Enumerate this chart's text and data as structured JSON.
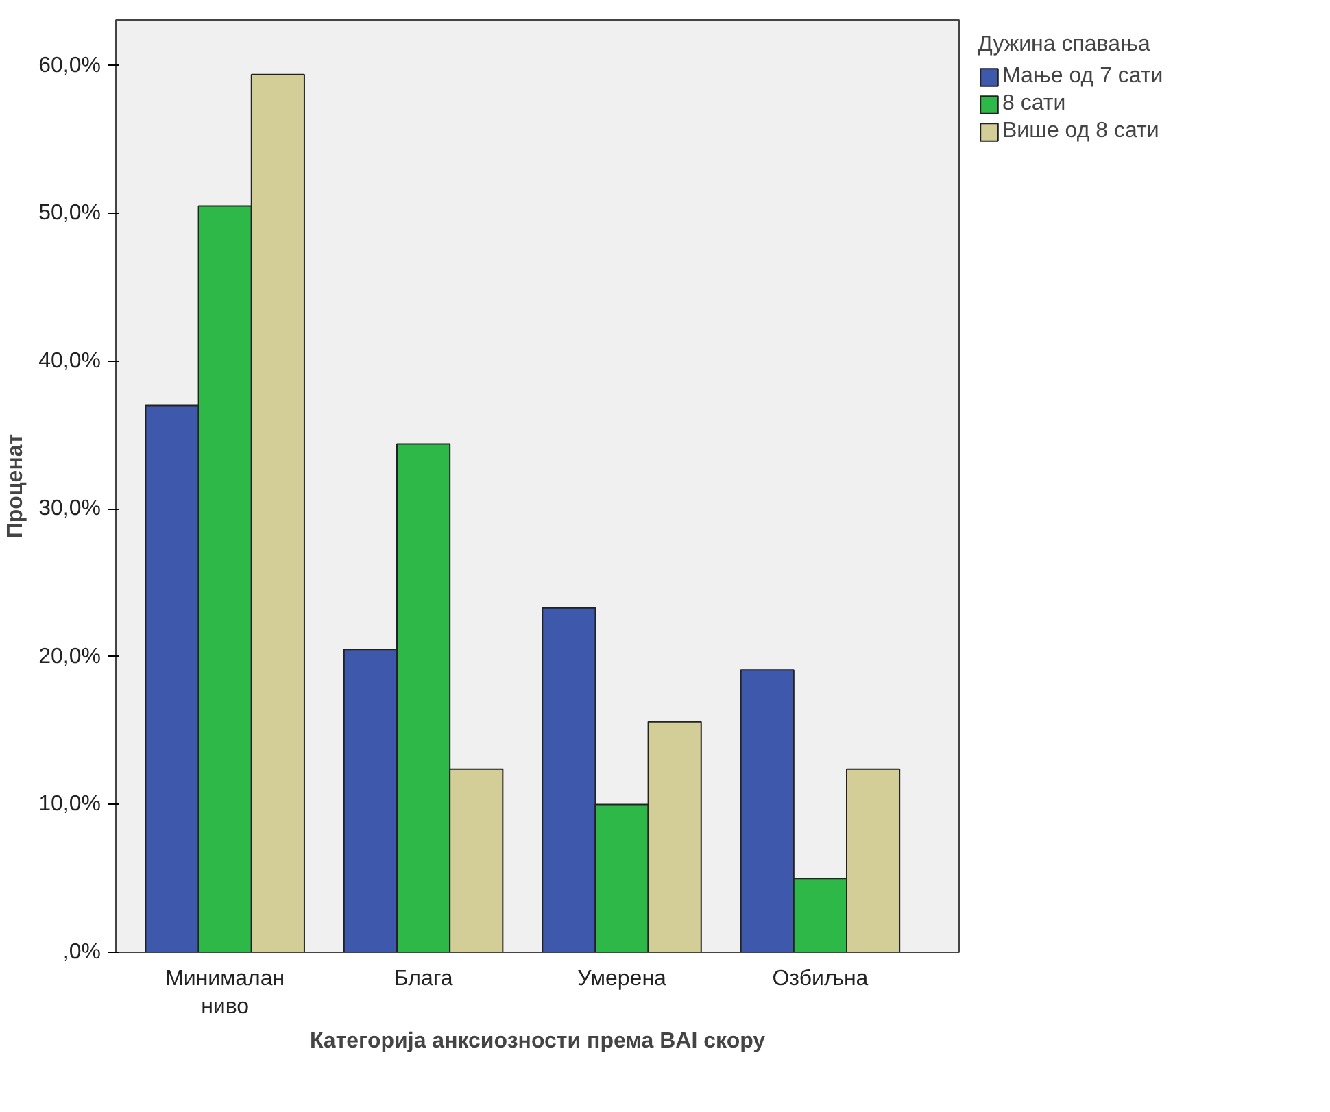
{
  "chart_data": {
    "type": "bar",
    "xlabel": "Категорија анксиозности према BAI скору",
    "ylabel": "Проценат",
    "legend_title": "Дужина спавања",
    "categories": [
      "Минималан\nниво",
      "Блага",
      "Умерена",
      "Озбиљна"
    ],
    "series": [
      {
        "name": "Мање од 7 сати",
        "color": "#3e58ac",
        "values": [
          37.0,
          20.5,
          23.3,
          19.1
        ]
      },
      {
        "name": "8 сати",
        "color": "#2eb848",
        "values": [
          50.5,
          34.4,
          10.0,
          5.0
        ]
      },
      {
        "name": "Више од 8 сати",
        "color": "#d3ce97",
        "values": [
          59.4,
          12.4,
          15.6,
          12.4
        ]
      }
    ],
    "ylim": [
      0,
      63.1
    ],
    "yticks": [
      {
        "value": 0,
        "label": ",0%"
      },
      {
        "value": 10,
        "label": "10,0%"
      },
      {
        "value": 20,
        "label": "20,0%"
      },
      {
        "value": 30,
        "label": "30,0%"
      },
      {
        "value": 40,
        "label": "40,0%"
      },
      {
        "value": 50,
        "label": "50,0%"
      },
      {
        "value": 60,
        "label": "60,0%"
      }
    ],
    "grid": false,
    "legend": "top right"
  }
}
